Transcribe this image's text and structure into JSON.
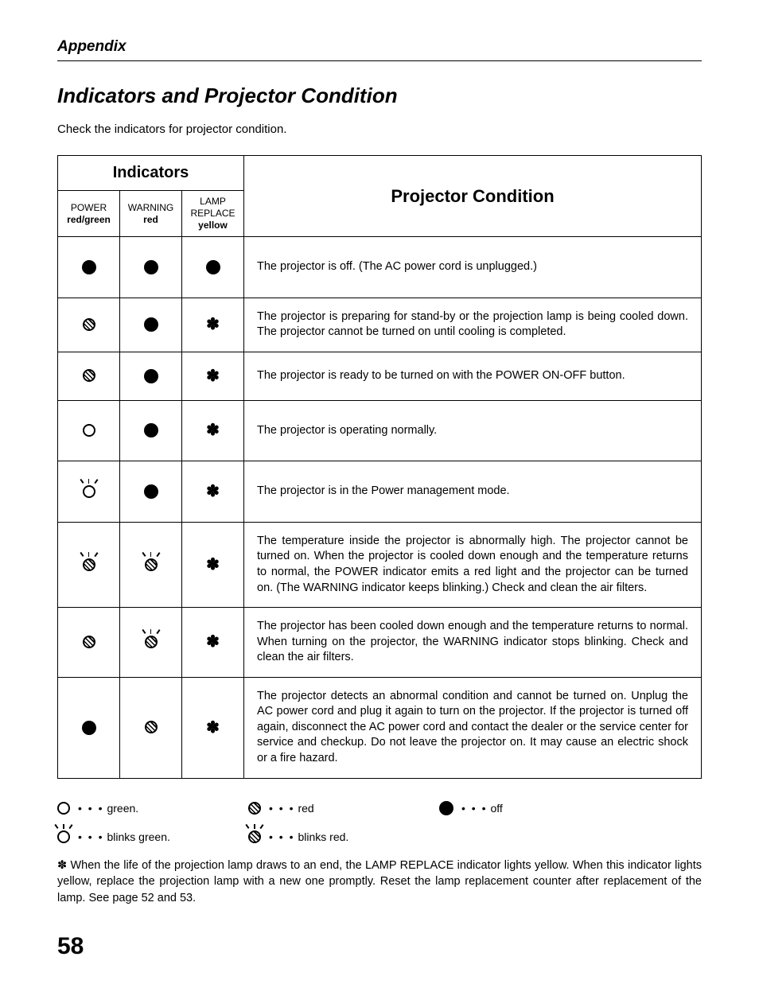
{
  "header": {
    "section": "Appendix"
  },
  "title": "Indicators and Projector Condition",
  "intro": "Check the indicators for projector condition.",
  "table": {
    "indicators_header": "Indicators",
    "condition_header": "Projector Condition",
    "columns": [
      {
        "line1": "POWER",
        "line2": "red/green"
      },
      {
        "line1": "WARNING",
        "line2": "red"
      },
      {
        "line1": "LAMP REPLACE",
        "line2": "yellow"
      }
    ],
    "rows": [
      {
        "power": "solid",
        "warning": "solid",
        "lamp": "solid",
        "desc": "The projector is off.  (The AC power cord is unplugged.)",
        "tall": true
      },
      {
        "power": "hatch",
        "warning": "solid",
        "lamp": "star",
        "desc": "The projector is preparing for stand-by or the projection lamp is being cooled down.  The projector cannot be turned on until cooling is completed."
      },
      {
        "power": "hatch",
        "warning": "solid",
        "lamp": "star",
        "desc": "The projector is ready to be turned on with the POWER ON-OFF button."
      },
      {
        "power": "open",
        "warning": "solid",
        "lamp": "star",
        "desc": "The projector is operating normally.",
        "tall": true
      },
      {
        "power": "open-blink",
        "warning": "solid",
        "lamp": "star",
        "desc": "The projector is in the Power management mode.",
        "tall": true
      },
      {
        "power": "hatch-blink",
        "warning": "hatch-blink",
        "lamp": "star",
        "desc": "The temperature inside the projector is abnormally high.  The projector cannot be turned on.  When  the projector is cooled down enough and the temperature returns to normal, the POWER indicator emits a red light and the projector can be turned on.  (The WARNING indicator keeps blinking.)  Check and clean the air filters."
      },
      {
        "power": "hatch",
        "warning": "hatch-blink",
        "lamp": "star",
        "desc": "The projector has been cooled down enough and the temperature returns to normal.  When turning on the projector, the WARNING indicator stops blinking.  Check and clean the air filters."
      },
      {
        "power": "solid",
        "warning": "hatch",
        "lamp": "star",
        "desc": "The projector detects an abnormal condition and cannot be turned on.  Unplug the AC power cord and plug it again to turn on the projector.  If the projector is turned off again, disconnect the AC power cord and contact the dealer or the service center for service and checkup.  Do not leave the projector on.  It may cause an electric shock or a fire hazard."
      }
    ]
  },
  "legend": {
    "items_row1": [
      {
        "icon": "open",
        "label": "green."
      },
      {
        "icon": "hatch",
        "label": "red"
      },
      {
        "icon": "solid",
        "label": "off"
      }
    ],
    "items_row2": [
      {
        "icon": "open-blink",
        "label": "blinks green."
      },
      {
        "icon": "hatch-blink",
        "label": "blinks red."
      }
    ]
  },
  "footnote": "✽ When the life of the projection lamp draws to an end, the LAMP REPLACE indicator lights yellow. When this indicator lights yellow, replace the projection lamp with a new one promptly.  Reset the lamp replacement counter after replacement of the lamp.  See page 52 and 53.",
  "page_number": "58"
}
